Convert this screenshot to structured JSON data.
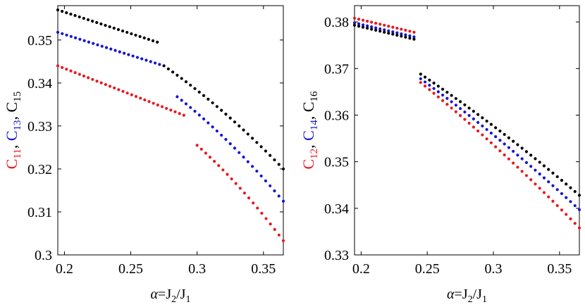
{
  "chart_data": [
    {
      "type": "scatter",
      "xlabel": "α=J2/J1",
      "xlabel_parts": [
        "α=J",
        "2",
        "/J",
        "1"
      ],
      "ylabel_parts": [
        {
          "text": "C",
          "color": "#e8191e"
        },
        {
          "text": "11",
          "color": "#e8191e",
          "sub": true
        },
        {
          "text": ", ",
          "color": "#000000"
        },
        {
          "text": "C",
          "color": "#1515d4"
        },
        {
          "text": "13",
          "color": "#1515d4",
          "sub": true
        },
        {
          "text": ", ",
          "color": "#000000"
        },
        {
          "text": "C",
          "color": "#000000"
        },
        {
          "text": "15",
          "color": "#000000",
          "sub": true
        }
      ],
      "xlim": [
        0.195,
        0.365
      ],
      "ylim": [
        0.3,
        0.358
      ],
      "xticks": [
        0.2,
        0.25,
        0.3,
        0.35
      ],
      "xtick_labels": [
        "0.2",
        "0.25",
        "0.3",
        "0.35"
      ],
      "yticks": [
        0.3,
        0.31,
        0.32,
        0.33,
        0.34,
        0.35
      ],
      "ytick_labels": [
        "0.3",
        "0.31",
        "0.32",
        "0.33",
        "0.34",
        "0.35"
      ],
      "series": [
        {
          "name": "C11",
          "color": "#e8191e",
          "segments": [
            {
              "x_start": 0.195,
              "x_end": 0.29,
              "y_start": 0.344,
              "y_end": 0.3325,
              "curve": 0
            },
            {
              "x_start": 0.3,
              "x_end": 0.365,
              "y_start": 0.3255,
              "y_end": 0.3033,
              "curve": 0.2
            }
          ]
        },
        {
          "name": "C13",
          "color": "#1515d4",
          "segments": [
            {
              "x_start": 0.195,
              "x_end": 0.275,
              "y_start": 0.3518,
              "y_end": 0.344,
              "curve": 0
            },
            {
              "x_start": 0.285,
              "x_end": 0.365,
              "y_start": 0.3368,
              "y_end": 0.3125,
              "curve": 0.2
            }
          ]
        },
        {
          "name": "C15",
          "color": "#000000",
          "segments": [
            {
              "x_start": 0.195,
              "x_end": 0.27,
              "y_start": 0.357,
              "y_end": 0.3495,
              "curve": 0
            },
            {
              "x_start": 0.275,
              "x_end": 0.365,
              "y_start": 0.344,
              "y_end": 0.32,
              "curve": 0.2
            }
          ]
        }
      ]
    },
    {
      "type": "scatter",
      "xlabel": "α=J2/J1",
      "xlabel_parts": [
        "α=J",
        "2",
        "/J",
        "1"
      ],
      "ylabel_parts": [
        {
          "text": "C",
          "color": "#e8191e"
        },
        {
          "text": "12",
          "color": "#e8191e",
          "sub": true
        },
        {
          "text": ", ",
          "color": "#000000"
        },
        {
          "text": "C",
          "color": "#1515d4"
        },
        {
          "text": "14",
          "color": "#1515d4",
          "sub": true
        },
        {
          "text": ", ",
          "color": "#000000"
        },
        {
          "text": "C",
          "color": "#000000"
        },
        {
          "text": "16",
          "color": "#000000",
          "sub": true
        }
      ],
      "xlim": [
        0.195,
        0.365
      ],
      "ylim": [
        0.33,
        0.3835
      ],
      "xticks": [
        0.2,
        0.25,
        0.3,
        0.35
      ],
      "xtick_labels": [
        "0.2",
        "0.25",
        "0.3",
        "0.35"
      ],
      "yticks": [
        0.33,
        0.34,
        0.35,
        0.36,
        0.37,
        0.38
      ],
      "ytick_labels": [
        "0.33",
        "0.34",
        "0.35",
        "0.36",
        "0.37",
        "0.38"
      ],
      "series": [
        {
          "name": "C12",
          "color": "#e8191e",
          "segments": [
            {
              "x_start": 0.195,
              "x_end": 0.24,
              "y_start": 0.3808,
              "y_end": 0.3778,
              "curve": 0
            },
            {
              "x_start": 0.245,
              "x_end": 0.365,
              "y_start": 0.367,
              "y_end": 0.3358,
              "curve": 0.12
            }
          ]
        },
        {
          "name": "C14",
          "color": "#1515d4",
          "segments": [
            {
              "x_start": 0.195,
              "x_end": 0.24,
              "y_start": 0.3798,
              "y_end": 0.3768,
              "curve": 0
            },
            {
              "x_start": 0.245,
              "x_end": 0.365,
              "y_start": 0.3678,
              "y_end": 0.3397,
              "curve": 0.12
            }
          ]
        },
        {
          "name": "C16",
          "color": "#000000",
          "segments": [
            {
              "x_start": 0.195,
              "x_end": 0.24,
              "y_start": 0.3793,
              "y_end": 0.3763,
              "curve": 0
            },
            {
              "x_start": 0.245,
              "x_end": 0.365,
              "y_start": 0.3688,
              "y_end": 0.3428,
              "curve": 0.12
            }
          ]
        }
      ]
    }
  ]
}
